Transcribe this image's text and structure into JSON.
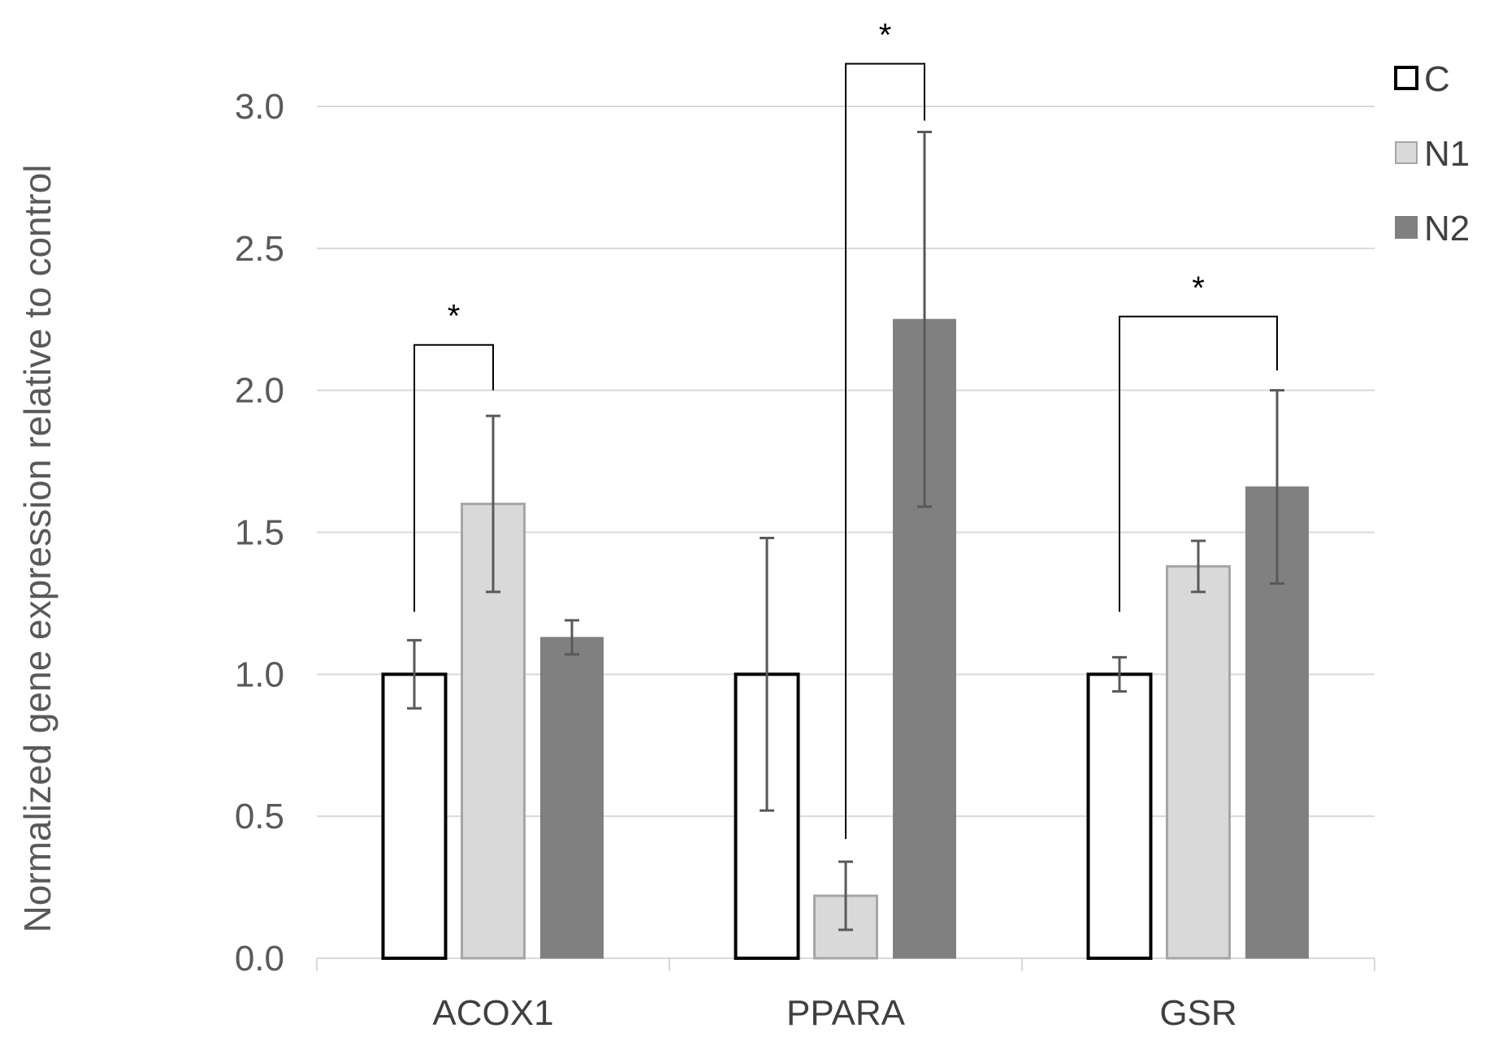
{
  "chart_data": {
    "type": "bar",
    "title": "",
    "xlabel": "",
    "ylabel": "Normalized gene expression relative to control",
    "ylim": [
      0,
      3.0
    ],
    "yticks": [
      "0.0",
      "0.5",
      "1.0",
      "1.5",
      "2.0",
      "2.5",
      "3.0"
    ],
    "ytick_values": [
      0,
      0.5,
      1.0,
      1.5,
      2.0,
      2.5,
      3.0
    ],
    "grid": true,
    "legend_position": "top-right",
    "categories": [
      "ACOX1",
      "PPARA",
      "GSR"
    ],
    "series": [
      {
        "name": "C",
        "fill": "#ffffff",
        "stroke": "#000000",
        "values": [
          1.0,
          1.0,
          1.0
        ],
        "errors": [
          0.12,
          0.48,
          0.06
        ]
      },
      {
        "name": "N1",
        "fill": "#d9d9d9",
        "stroke": "#a6a6a6",
        "values": [
          1.6,
          0.22,
          1.38
        ],
        "errors": [
          0.31,
          0.12,
          0.09
        ]
      },
      {
        "name": "N2",
        "fill": "#808080",
        "stroke": "#7f7f7f",
        "values": [
          1.13,
          2.25,
          1.66
        ],
        "errors": [
          0.06,
          0.66,
          0.34
        ]
      }
    ],
    "significance": [
      {
        "category": 0,
        "from_series": 0,
        "to_series": 1,
        "label": "*",
        "from_value": 1.22,
        "to_value": 2.0,
        "bracket_value": 2.16
      },
      {
        "category": 1,
        "from_series": 1,
        "to_series": 2,
        "label": "*",
        "from_value": 0.42,
        "to_value": 2.95,
        "bracket_value": 3.15
      },
      {
        "category": 2,
        "from_series": 0,
        "to_series": 2,
        "label": "*",
        "from_value": 1.22,
        "to_value": 2.07,
        "bracket_value": 2.26
      }
    ]
  }
}
